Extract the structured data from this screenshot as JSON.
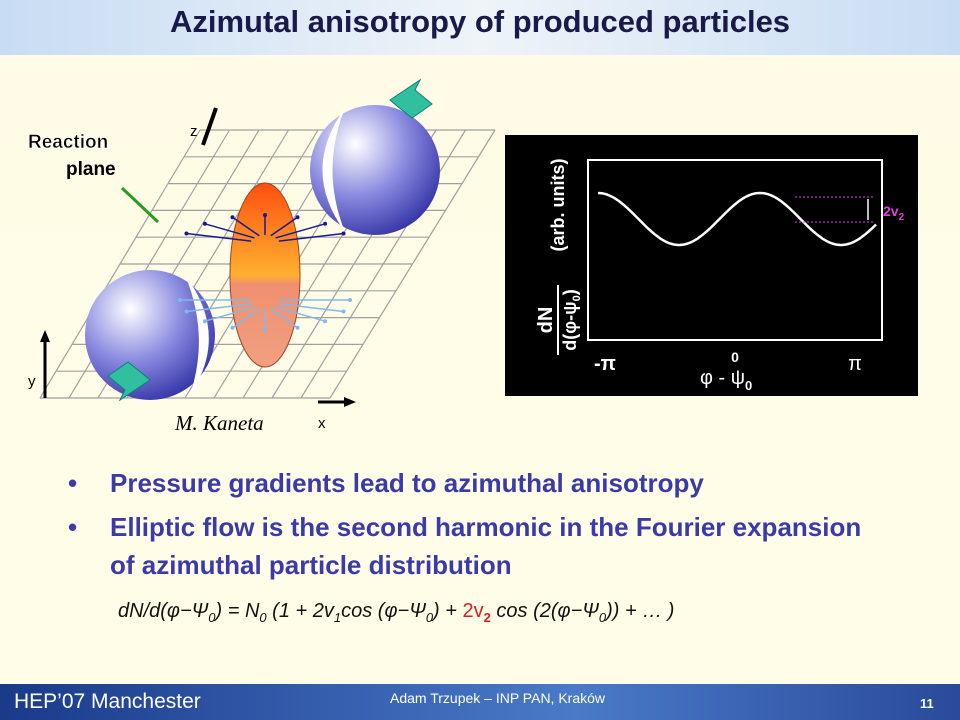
{
  "header": {
    "title": "Azimutal anisotropy of produced particles"
  },
  "diagram": {
    "reaction_plane": [
      "Reaction",
      "plane"
    ],
    "axes": {
      "z": "z",
      "y": "y",
      "x": "x"
    },
    "credit": "M. Kaneta"
  },
  "inset": {
    "y_label": {
      "numerator": "dN",
      "denominator": "d(φ-ψ",
      "denominator_sub": "0",
      "denominator_end": ")",
      "units": "(arb. units)"
    },
    "x_ticks": [
      "-π",
      "0",
      "π"
    ],
    "x_label": "φ - ψ",
    "x_label_sub": "0",
    "amplitude_label": "2v",
    "amplitude_sub": "2"
  },
  "bullets": [
    "Pressure gradients lead to azimuthal anisotropy",
    "Elliptic flow is the second harmonic in the Fourier expansion of azimuthal particle distribution"
  ],
  "formula": [
    "dN/d(",
    "φ−Ψ",
    "0",
    ") = N",
    "0",
    " (1 + 2v",
    "1",
    "cos (",
    "φ−Ψ",
    "0",
    ") + ",
    "2v",
    "2",
    " cos (2(",
    "φ−Ψ",
    "0",
    ")) + … )"
  ],
  "footer": {
    "event": "HEP’07 Manchester",
    "author": "Adam Trzupek – INP PAN, Kraków",
    "page": "11"
  }
}
